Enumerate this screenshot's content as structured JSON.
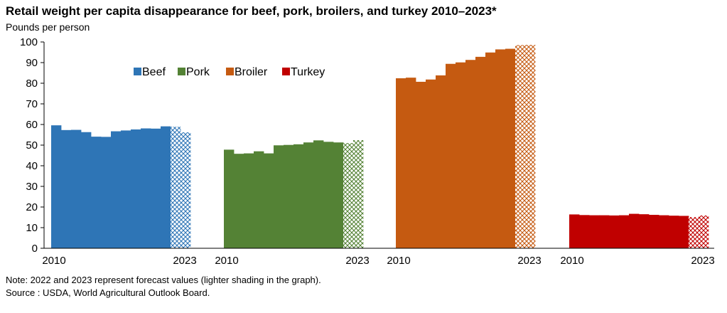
{
  "title": "Retail weight per capita disappearance for beef, pork, broilers, and turkey 2010–2023*",
  "y_unit_label": "Pounds per person",
  "note": "Note: 2022 and 2023 represent forecast values (lighter shading in the graph).",
  "source": "Source : USDA, World Agricultural Outlook Board.",
  "chart_data": {
    "type": "bar",
    "title": "Retail weight per capita disappearance for beef, pork, broilers, and turkey 2010–2023*",
    "ylabel": "Pounds per person",
    "ylim": [
      0,
      100
    ],
    "yticks": [
      0,
      10,
      20,
      30,
      40,
      50,
      60,
      70,
      80,
      90,
      100
    ],
    "x": [
      2010,
      2011,
      2012,
      2013,
      2014,
      2015,
      2016,
      2017,
      2018,
      2019,
      2020,
      2021,
      2022,
      2023
    ],
    "forecast_years": [
      2022,
      2023
    ],
    "grid": false,
    "legend_position": "top-left",
    "series": [
      {
        "name": "Beef",
        "color": "#2e75b6",
        "values": [
          59.6,
          57.3,
          57.4,
          56.3,
          54.1,
          54.0,
          56.7,
          57.1,
          57.6,
          58.1,
          58.0,
          59.1,
          58.9,
          56.2
        ],
        "axis_labels": [
          "2010",
          "2023"
        ]
      },
      {
        "name": "Pork",
        "color": "#548235",
        "values": [
          47.8,
          45.8,
          46.0,
          47.0,
          46.0,
          49.9,
          50.1,
          50.4,
          51.3,
          52.3,
          51.6,
          51.3,
          51.0,
          52.4
        ],
        "axis_labels": [
          "2010",
          "2023"
        ]
      },
      {
        "name": "Broiler",
        "color": "#c55a11",
        "values": [
          82.4,
          82.7,
          80.7,
          81.8,
          83.8,
          89.4,
          90.1,
          91.3,
          92.8,
          94.9,
          96.4,
          96.7,
          98.5,
          98.6
        ],
        "axis_labels": [
          "2010",
          "2023"
        ]
      },
      {
        "name": "Turkey",
        "color": "#c00000",
        "values": [
          16.4,
          16.1,
          16.0,
          16.0,
          15.9,
          16.0,
          16.7,
          16.5,
          16.2,
          16.0,
          15.8,
          15.7,
          15.1,
          15.9
        ],
        "axis_labels": [
          "2010",
          "2023"
        ]
      }
    ]
  }
}
